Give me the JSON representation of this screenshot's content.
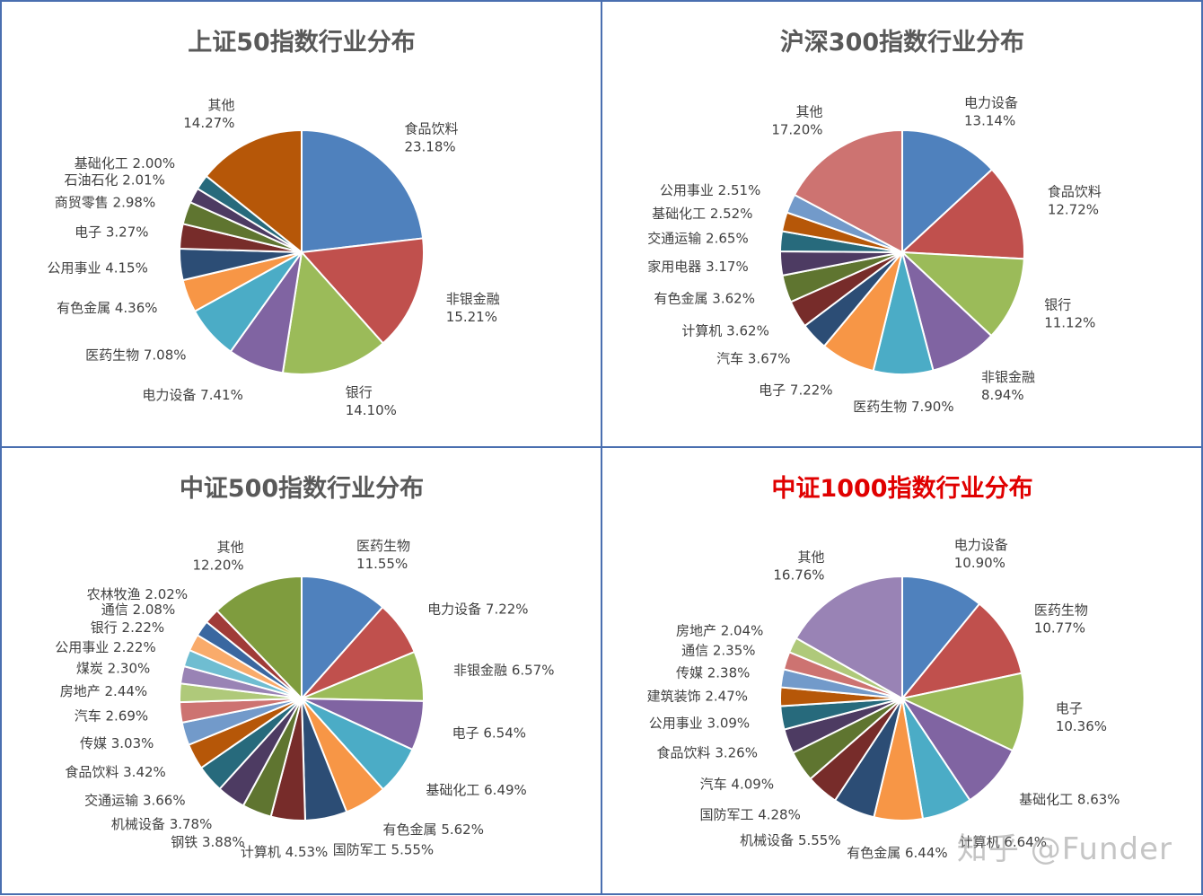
{
  "watermark": "知乎 @Funder",
  "colors": {
    "panel_border": "#4a6fb0",
    "title": "#595959",
    "title_highlight": "#e00000"
  },
  "chart_data": [
    {
      "type": "pie",
      "title": "上证50指数行业分布",
      "title_color": "#595959",
      "slices": [
        {
          "name": "食品饮料",
          "value": 23.18,
          "label": "23.18%",
          "color": "#4f81bd"
        },
        {
          "name": "非银金融",
          "value": 15.21,
          "label": "15.21%",
          "color": "#c0504d"
        },
        {
          "name": "银行",
          "value": 14.1,
          "label": "14.10%",
          "color": "#9bbb59"
        },
        {
          "name": "电力设备",
          "value": 7.41,
          "label": "7.41%",
          "color": "#8064a2"
        },
        {
          "name": "医药生物",
          "value": 7.08,
          "label": "7.08%",
          "color": "#4bacc6"
        },
        {
          "name": "有色金属",
          "value": 4.36,
          "label": "4.36%",
          "color": "#f79646"
        },
        {
          "name": "公用事业",
          "value": 4.15,
          "label": "4.15%",
          "color": "#2c4d75"
        },
        {
          "name": "电子",
          "value": 3.27,
          "label": "3.27%",
          "color": "#772c2a"
        },
        {
          "name": "商贸零售",
          "value": 2.98,
          "label": "2.98%",
          "color": "#5f7530"
        },
        {
          "name": "石油石化",
          "value": 2.01,
          "label": "2.01%",
          "color": "#4d3b62"
        },
        {
          "name": "基础化工",
          "value": 2.0,
          "label": "2.00%",
          "color": "#276a7c"
        },
        {
          "name": "其他",
          "value": 14.27,
          "label": "14.27%",
          "color": "#b65708"
        }
      ]
    },
    {
      "type": "pie",
      "title": "沪深300指数行业分布",
      "title_color": "#595959",
      "slices": [
        {
          "name": "电力设备",
          "value": 13.14,
          "label": "13.14%",
          "color": "#4f81bd"
        },
        {
          "name": "食品饮料",
          "value": 12.72,
          "label": "12.72%",
          "color": "#c0504d"
        },
        {
          "name": "银行",
          "value": 11.12,
          "label": "11.12%",
          "color": "#9bbb59"
        },
        {
          "name": "非银金融",
          "value": 8.94,
          "label": "8.94%",
          "color": "#8064a2"
        },
        {
          "name": "医药生物",
          "value": 7.9,
          "label": "7.90%",
          "color": "#4bacc6"
        },
        {
          "name": "电子",
          "value": 7.22,
          "label": "7.22%",
          "color": "#f79646"
        },
        {
          "name": "汽车",
          "value": 3.67,
          "label": "3.67%",
          "color": "#2c4d75"
        },
        {
          "name": "计算机",
          "value": 3.62,
          "label": "3.62%",
          "color": "#772c2a"
        },
        {
          "name": "有色金属",
          "value": 3.62,
          "label": "3.62%",
          "color": "#5f7530"
        },
        {
          "name": "家用电器",
          "value": 3.17,
          "label": "3.17%",
          "color": "#4d3b62"
        },
        {
          "name": "交通运输",
          "value": 2.65,
          "label": "2.65%",
          "color": "#276a7c"
        },
        {
          "name": "基础化工",
          "value": 2.52,
          "label": "2.52%",
          "color": "#b65708"
        },
        {
          "name": "公用事业",
          "value": 2.51,
          "label": "2.51%",
          "color": "#729aca"
        },
        {
          "name": "其他",
          "value": 17.2,
          "label": "17.20%",
          "color": "#cd7371"
        }
      ]
    },
    {
      "type": "pie",
      "title": "中证500指数行业分布",
      "title_color": "#595959",
      "slices": [
        {
          "name": "医药生物",
          "value": 11.55,
          "label": "11.55%",
          "color": "#4f81bd"
        },
        {
          "name": "电力设备",
          "value": 7.22,
          "label": "7.22%",
          "color": "#c0504d"
        },
        {
          "name": "非银金融",
          "value": 6.57,
          "label": "6.57%",
          "color": "#9bbb59"
        },
        {
          "name": "电子",
          "value": 6.54,
          "label": "6.54%",
          "color": "#8064a2"
        },
        {
          "name": "基础化工",
          "value": 6.49,
          "label": "6.49%",
          "color": "#4bacc6"
        },
        {
          "name": "有色金属",
          "value": 5.62,
          "label": "5.62%",
          "color": "#f79646"
        },
        {
          "name": "国防军工",
          "value": 5.55,
          "label": "5.55%",
          "color": "#2c4d75"
        },
        {
          "name": "计算机",
          "value": 4.53,
          "label": "4.53%",
          "color": "#772c2a"
        },
        {
          "name": "钢铁",
          "value": 3.88,
          "label": "3.88%",
          "color": "#5f7530"
        },
        {
          "name": "机械设备",
          "value": 3.78,
          "label": "3.78%",
          "color": "#4d3b62"
        },
        {
          "name": "交通运输",
          "value": 3.66,
          "label": "3.66%",
          "color": "#276a7c"
        },
        {
          "name": "食品饮料",
          "value": 3.42,
          "label": "3.42%",
          "color": "#b65708"
        },
        {
          "name": "传媒",
          "value": 3.03,
          "label": "3.03%",
          "color": "#729aca"
        },
        {
          "name": "汽车",
          "value": 2.69,
          "label": "2.69%",
          "color": "#cd7371"
        },
        {
          "name": "房地产",
          "value": 2.44,
          "label": "2.44%",
          "color": "#afc97a"
        },
        {
          "name": "煤炭",
          "value": 2.3,
          "label": "2.30%",
          "color": "#9983b5"
        },
        {
          "name": "公用事业",
          "value": 2.22,
          "label": "2.22%",
          "color": "#6fbdd1"
        },
        {
          "name": "银行",
          "value": 2.22,
          "label": "2.22%",
          "color": "#f9ab6b"
        },
        {
          "name": "通信",
          "value": 2.08,
          "label": "2.08%",
          "color": "#3a67a0"
        },
        {
          "name": "农林牧渔",
          "value": 2.02,
          "label": "2.02%",
          "color": "#a03b38"
        },
        {
          "name": "其他",
          "value": 12.2,
          "label": "12.20%",
          "color": "#7f9c3e"
        }
      ]
    },
    {
      "type": "pie",
      "title": "中证1000指数行业分布",
      "title_color": "#e00000",
      "slices": [
        {
          "name": "电力设备",
          "value": 10.9,
          "label": "10.90%",
          "color": "#4f81bd"
        },
        {
          "name": "医药生物",
          "value": 10.77,
          "label": "10.77%",
          "color": "#c0504d"
        },
        {
          "name": "电子",
          "value": 10.36,
          "label": "10.36%",
          "color": "#9bbb59"
        },
        {
          "name": "基础化工",
          "value": 8.63,
          "label": "8.63%",
          "color": "#8064a2"
        },
        {
          "name": "计算机",
          "value": 6.64,
          "label": "6.64%",
          "color": "#4bacc6"
        },
        {
          "name": "有色金属",
          "value": 6.44,
          "label": "6.44%",
          "color": "#f79646"
        },
        {
          "name": "机械设备",
          "value": 5.55,
          "label": "5.55%",
          "color": "#2c4d75"
        },
        {
          "name": "国防军工",
          "value": 4.28,
          "label": "4.28%",
          "color": "#772c2a"
        },
        {
          "name": "汽车",
          "value": 4.09,
          "label": "4.09%",
          "color": "#5f7530"
        },
        {
          "name": "食品饮料",
          "value": 3.26,
          "label": "3.26%",
          "color": "#4d3b62"
        },
        {
          "name": "公用事业",
          "value": 3.09,
          "label": "3.09%",
          "color": "#276a7c"
        },
        {
          "name": "建筑装饰",
          "value": 2.47,
          "label": "2.47%",
          "color": "#b65708"
        },
        {
          "name": "传媒",
          "value": 2.38,
          "label": "2.38%",
          "color": "#729aca"
        },
        {
          "name": "通信",
          "value": 2.35,
          "label": "2.35%",
          "color": "#cd7371"
        },
        {
          "name": "房地产",
          "value": 2.04,
          "label": "2.04%",
          "color": "#afc97a"
        },
        {
          "name": "其他",
          "value": 16.76,
          "label": "16.76%",
          "color": "#9983b5"
        }
      ]
    }
  ]
}
